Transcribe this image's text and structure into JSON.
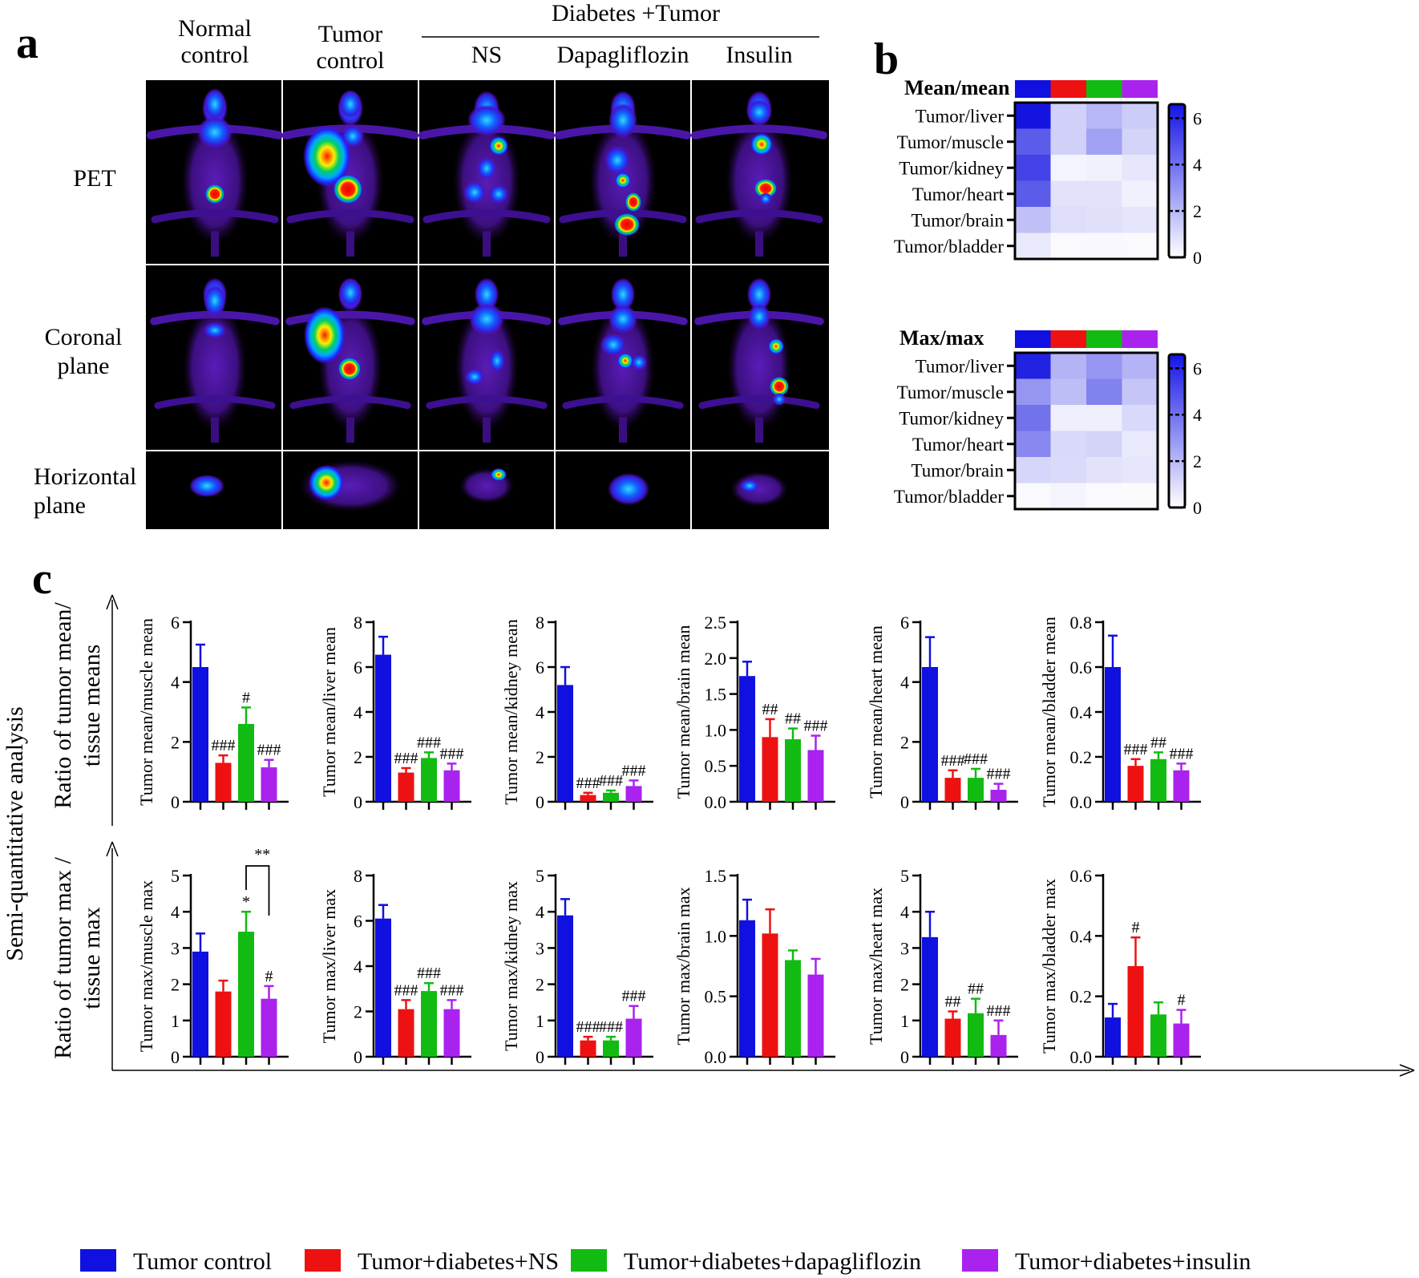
{
  "figure": {
    "panel_a": {
      "letter": "a",
      "columns": [
        "Normal\ncontrol",
        "Tumor\ncontrol",
        "NS",
        "Dapagliflozin",
        "Insulin"
      ],
      "group_header": "Diabetes +Tumor",
      "rows": [
        "PET",
        "Coronal\nplane",
        "Horizontal\nplane"
      ]
    },
    "panel_b": {
      "letter": "b",
      "heatmaps": [
        {
          "title": "Mean/mean",
          "rows": [
            "Tumor/liver",
            "Tumor/muscle",
            "Tumor/kidney",
            "Tumor/heart",
            "Tumor/brain",
            "Tumor/bladder"
          ],
          "values": [
            [
              6.5,
              1.3,
              2.0,
              1.4
            ],
            [
              4.5,
              1.3,
              2.6,
              1.2
            ],
            [
              5.2,
              0.3,
              0.4,
              0.7
            ],
            [
              4.5,
              0.8,
              0.8,
              0.4
            ],
            [
              1.75,
              0.9,
              0.87,
              0.72
            ],
            [
              0.6,
              0.16,
              0.19,
              0.14
            ]
          ],
          "colorbar_ticks": [
            "6",
            "4",
            "2",
            "0"
          ]
        },
        {
          "title": "Max/max",
          "rows": [
            "Tumor/liver",
            "Tumor/muscle",
            "Tumor/kidney",
            "Tumor/heart",
            "Tumor/brain",
            "Tumor/bladder"
          ],
          "values": [
            [
              6.1,
              2.1,
              2.9,
              2.1
            ],
            [
              2.9,
              1.8,
              3.45,
              1.6
            ],
            [
              3.9,
              0.45,
              0.45,
              1.05
            ],
            [
              3.3,
              1.05,
              1.2,
              0.6
            ],
            [
              1.13,
              1.02,
              0.8,
              0.68
            ],
            [
              0.13,
              0.3,
              0.14,
              0.11
            ]
          ],
          "colorbar_ticks": [
            "6",
            "4",
            "2",
            "0"
          ]
        }
      ],
      "group_colors": [
        "#1010e0",
        "#ee1111",
        "#11bb11",
        "#aa22ee"
      ]
    },
    "panel_c": {
      "letter": "c",
      "y_axis_title": "Semi-quantitative analysis",
      "row_titles": [
        "Ratio of tumor mean/\ntissue means",
        "Ratio of tumor max /\ntissue  max"
      ],
      "legend": [
        {
          "label": "Tumor control",
          "color": "#1010e0"
        },
        {
          "label": "Tumor+diabetes+NS",
          "color": "#ee1111"
        },
        {
          "label": "Tumor+diabetes+dapagliflozin",
          "color": "#11bb11"
        },
        {
          "label": "Tumor+diabetes+insulin",
          "color": "#aa22ee"
        }
      ]
    }
  },
  "chart_data": [
    {
      "type": "bar",
      "ylabel": "Tumor mean/muscle mean",
      "ylim": [
        0,
        6
      ],
      "yticks": [
        "0",
        "2",
        "4",
        "6"
      ],
      "values": [
        4.5,
        1.3,
        2.6,
        1.15
      ],
      "errors": [
        0.75,
        0.25,
        0.55,
        0.25
      ],
      "annotations": [
        "",
        "###",
        "#",
        "###"
      ]
    },
    {
      "type": "bar",
      "ylabel": "Tumor mean/liver mean",
      "ylim": [
        0,
        8
      ],
      "yticks": [
        "0",
        "2",
        "4",
        "6",
        "8"
      ],
      "values": [
        6.55,
        1.3,
        1.95,
        1.4
      ],
      "errors": [
        0.8,
        0.2,
        0.25,
        0.3
      ],
      "annotations": [
        "",
        "###",
        "###",
        "###"
      ]
    },
    {
      "type": "bar",
      "ylabel": "Tumor mean/kidney mean",
      "ylim": [
        0,
        8
      ],
      "yticks": [
        "0",
        "2",
        "4",
        "6",
        "8"
      ],
      "values": [
        5.2,
        0.3,
        0.4,
        0.7
      ],
      "errors": [
        0.8,
        0.1,
        0.1,
        0.25
      ],
      "annotations": [
        "",
        "###",
        "###",
        "###"
      ]
    },
    {
      "type": "bar",
      "ylabel": "Tumor mean/brain mean",
      "ylim": [
        0,
        2.5
      ],
      "yticks": [
        "0.0",
        "0.5",
        "1.0",
        "1.5",
        "2.0",
        "2.5"
      ],
      "values": [
        1.75,
        0.9,
        0.87,
        0.72
      ],
      "errors": [
        0.2,
        0.25,
        0.15,
        0.2
      ],
      "annotations": [
        "",
        "##",
        "##",
        "###"
      ]
    },
    {
      "type": "bar",
      "ylabel": "Tumor mean/heart mean",
      "ylim": [
        0,
        6
      ],
      "yticks": [
        "0",
        "2",
        "4",
        "6"
      ],
      "values": [
        4.5,
        0.8,
        0.8,
        0.4
      ],
      "errors": [
        1.0,
        0.25,
        0.3,
        0.2
      ],
      "annotations": [
        "",
        "###",
        "###",
        "###"
      ]
    },
    {
      "type": "bar",
      "ylabel": "Tumor mean/bladder mean",
      "ylim": [
        0,
        0.8
      ],
      "yticks": [
        "0.0",
        "0.2",
        "0.4",
        "0.6",
        "0.8"
      ],
      "values": [
        0.6,
        0.16,
        0.19,
        0.14
      ],
      "errors": [
        0.14,
        0.03,
        0.03,
        0.03
      ],
      "annotations": [
        "",
        "###",
        "##",
        "###"
      ]
    },
    {
      "type": "bar",
      "ylabel": "Tumor max/muscle max",
      "ylim": [
        0,
        5
      ],
      "yticks": [
        "0",
        "1",
        "2",
        "3",
        "4",
        "5"
      ],
      "values": [
        2.9,
        1.8,
        3.45,
        1.6
      ],
      "errors": [
        0.5,
        0.3,
        0.55,
        0.35
      ],
      "annotations": [
        "",
        "",
        "*",
        "#"
      ],
      "bracket": {
        "from": 2,
        "to": 3,
        "label": "**"
      }
    },
    {
      "type": "bar",
      "ylabel": "Tumor max/liver max",
      "ylim": [
        0,
        8
      ],
      "yticks": [
        "0",
        "2",
        "4",
        "6",
        "8"
      ],
      "values": [
        6.1,
        2.1,
        2.9,
        2.1
      ],
      "errors": [
        0.6,
        0.4,
        0.35,
        0.4
      ],
      "annotations": [
        "",
        "###",
        "###",
        "###"
      ]
    },
    {
      "type": "bar",
      "ylabel": "Tumor max/kidney max",
      "ylim": [
        0,
        5
      ],
      "yticks": [
        "0",
        "1",
        "2",
        "3",
        "4",
        "5"
      ],
      "values": [
        3.9,
        0.45,
        0.45,
        1.05
      ],
      "errors": [
        0.45,
        0.1,
        0.1,
        0.35
      ],
      "annotations": [
        "",
        "###",
        "###",
        "###"
      ]
    },
    {
      "type": "bar",
      "ylabel": "Tumor max/brain max",
      "ylim": [
        0,
        1.5
      ],
      "yticks": [
        "0.0",
        "0.5",
        "1.0",
        "1.5"
      ],
      "values": [
        1.13,
        1.02,
        0.8,
        0.68
      ],
      "errors": [
        0.17,
        0.2,
        0.08,
        0.13
      ],
      "annotations": [
        "",
        "",
        "",
        ""
      ]
    },
    {
      "type": "bar",
      "ylabel": "Tumor max/heart max",
      "ylim": [
        0,
        5
      ],
      "yticks": [
        "0",
        "1",
        "2",
        "3",
        "4",
        "5"
      ],
      "values": [
        3.3,
        1.05,
        1.2,
        0.6
      ],
      "errors": [
        0.7,
        0.2,
        0.4,
        0.4
      ],
      "annotations": [
        "",
        "##",
        "##",
        "###"
      ]
    },
    {
      "type": "bar",
      "ylabel": "Tumor max/bladder max",
      "ylim": [
        0,
        0.6
      ],
      "yticks": [
        "0.0",
        "0.2",
        "0.4",
        "0.6"
      ],
      "values": [
        0.13,
        0.3,
        0.14,
        0.11
      ],
      "errors": [
        0.045,
        0.095,
        0.04,
        0.045
      ],
      "annotations": [
        "",
        "#",
        "",
        "#"
      ]
    }
  ]
}
